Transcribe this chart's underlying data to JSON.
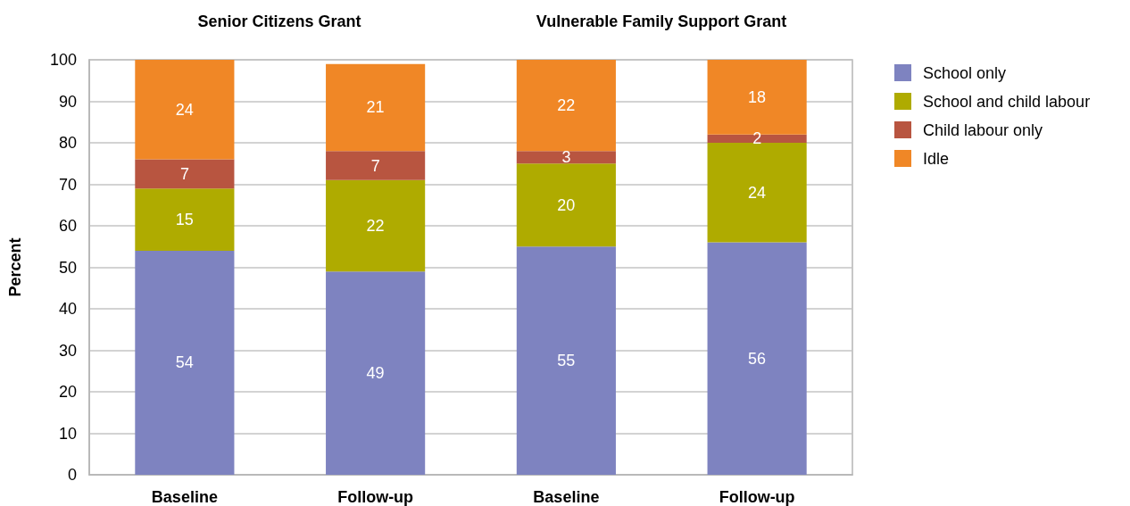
{
  "chart_data": {
    "type": "bar",
    "stacked": true,
    "ylabel": "Percent",
    "annotations": [
      "Senior Citizens Grant",
      "Vulnerable Family Support Grant"
    ],
    "categories": [
      "Baseline",
      "Follow-up",
      "Baseline",
      "Follow-up"
    ],
    "series": [
      {
        "name": "School only",
        "color": "#7e83c0",
        "values": [
          54,
          49,
          55,
          56
        ]
      },
      {
        "name": "School and child labour",
        "color": "#afab00",
        "values": [
          15,
          22,
          20,
          24
        ]
      },
      {
        "name": "Child labour only",
        "color": "#b85540",
        "values": [
          7,
          7,
          3,
          2
        ]
      },
      {
        "name": "Idle",
        "color": "#f08726",
        "values": [
          24,
          21,
          22,
          18
        ]
      }
    ],
    "ylim": [
      0,
      100
    ],
    "yticks": [
      0,
      10,
      20,
      30,
      40,
      50,
      60,
      70,
      80,
      90,
      100
    ],
    "grid": "y",
    "legend": "top right",
    "data_labels": true
  }
}
